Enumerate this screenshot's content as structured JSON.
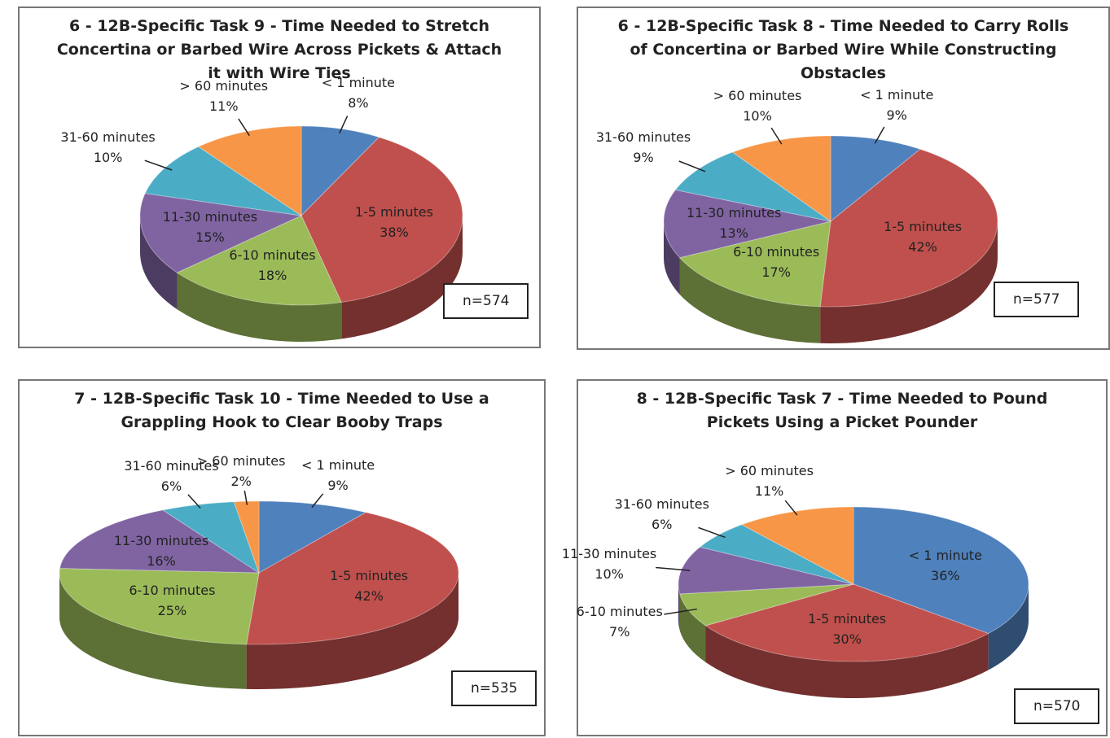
{
  "chart_data": [
    {
      "type": "pie",
      "title": "6 - 12B-Specific Task 9 - Time Needed to Stretch Concertina or Barbed Wire Across Pickets & Attach it with Wire Ties",
      "categories": [
        "< 1 minute",
        "1-5 minutes",
        "6-10 minutes",
        "11-30 minutes",
        "31-60 minutes",
        "> 60 minutes"
      ],
      "values": [
        8,
        38,
        18,
        15,
        10,
        11
      ],
      "value_labels": [
        "8%",
        "38%",
        "18%",
        "15%",
        "10%",
        "11%"
      ],
      "colors": [
        "#4f81bd",
        "#c0504d",
        "#9bbb59",
        "#8064a2",
        "#4bacc6",
        "#f79646"
      ],
      "annotation": "n=574"
    },
    {
      "type": "pie",
      "title": "6 - 12B-Specific Task 8 - Time Needed to Carry Rolls of Concertina or Barbed Wire While Constructing Obstacles",
      "categories": [
        "< 1 minute",
        "1-5 minutes",
        "6-10 minutes",
        "11-30 minutes",
        "31-60 minutes",
        "> 60 minutes"
      ],
      "values": [
        9,
        42,
        17,
        13,
        9,
        10
      ],
      "value_labels": [
        "9%",
        "42%",
        "17%",
        "13%",
        "9%",
        "10%"
      ],
      "colors": [
        "#4f81bd",
        "#c0504d",
        "#9bbb59",
        "#8064a2",
        "#4bacc6",
        "#f79646"
      ],
      "annotation": "n=577"
    },
    {
      "type": "pie",
      "title": "7 - 12B-Specific Task 10 - Time Needed to Use a Grappling Hook to Clear Booby Traps",
      "categories": [
        "< 1 minute",
        "1-5 minutes",
        "6-10 minutes",
        "11-30 minutes",
        "31-60 minutes",
        "> 60 minutes"
      ],
      "values": [
        9,
        42,
        25,
        16,
        6,
        2
      ],
      "value_labels": [
        "9%",
        "42%",
        "25%",
        "16%",
        "6%",
        "2%"
      ],
      "colors": [
        "#4f81bd",
        "#c0504d",
        "#9bbb59",
        "#8064a2",
        "#4bacc6",
        "#f79646"
      ],
      "annotation": "n=535"
    },
    {
      "type": "pie",
      "title": "8 - 12B-Specific Task 7 - Time Needed to Pound Pickets Using a Picket Pounder",
      "categories": [
        "< 1 minute",
        "1-5 minutes",
        "6-10 minutes",
        "11-30 minutes",
        "31-60 minutes",
        "> 60 minutes"
      ],
      "values": [
        36,
        30,
        7,
        10,
        6,
        11
      ],
      "value_labels": [
        "36%",
        "30%",
        "7%",
        "10%",
        "6%",
        "11%"
      ],
      "colors": [
        "#4f81bd",
        "#c0504d",
        "#9bbb59",
        "#8064a2",
        "#4bacc6",
        "#f79646"
      ],
      "annotation": "n=570"
    }
  ]
}
